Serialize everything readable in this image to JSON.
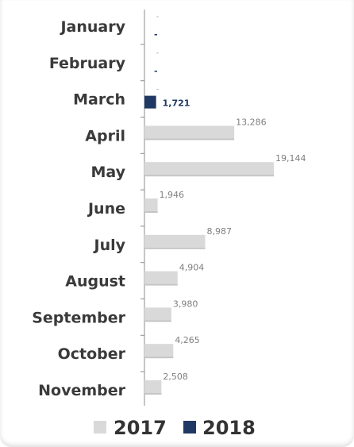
{
  "chart_data": {
    "type": "bar",
    "orientation": "horizontal",
    "categories": [
      "January",
      "February",
      "March",
      "April",
      "May",
      "June",
      "July",
      "August",
      "September",
      "October",
      "November"
    ],
    "series": [
      {
        "name": "2017",
        "color": "#d9d9d9",
        "values": [
          null,
          null,
          null,
          13286,
          19144,
          1946,
          8987,
          4904,
          3980,
          4265,
          2508
        ],
        "labels": [
          "",
          "",
          "",
          "13,286",
          "19,144",
          "1,946",
          "8,987",
          "4,904",
          "3,980",
          "4,265",
          "2,508"
        ]
      },
      {
        "name": "2018",
        "color": "#1f3864",
        "values": [
          null,
          null,
          1721,
          null,
          null,
          null,
          null,
          null,
          null,
          null,
          null
        ],
        "labels": [
          "-",
          "-",
          "1,721",
          "",
          "",
          "",
          "",
          "",
          "",
          "",
          ""
        ]
      }
    ],
    "xlim": [
      0,
      19144
    ],
    "grid": false,
    "legend_position": "bottom"
  }
}
